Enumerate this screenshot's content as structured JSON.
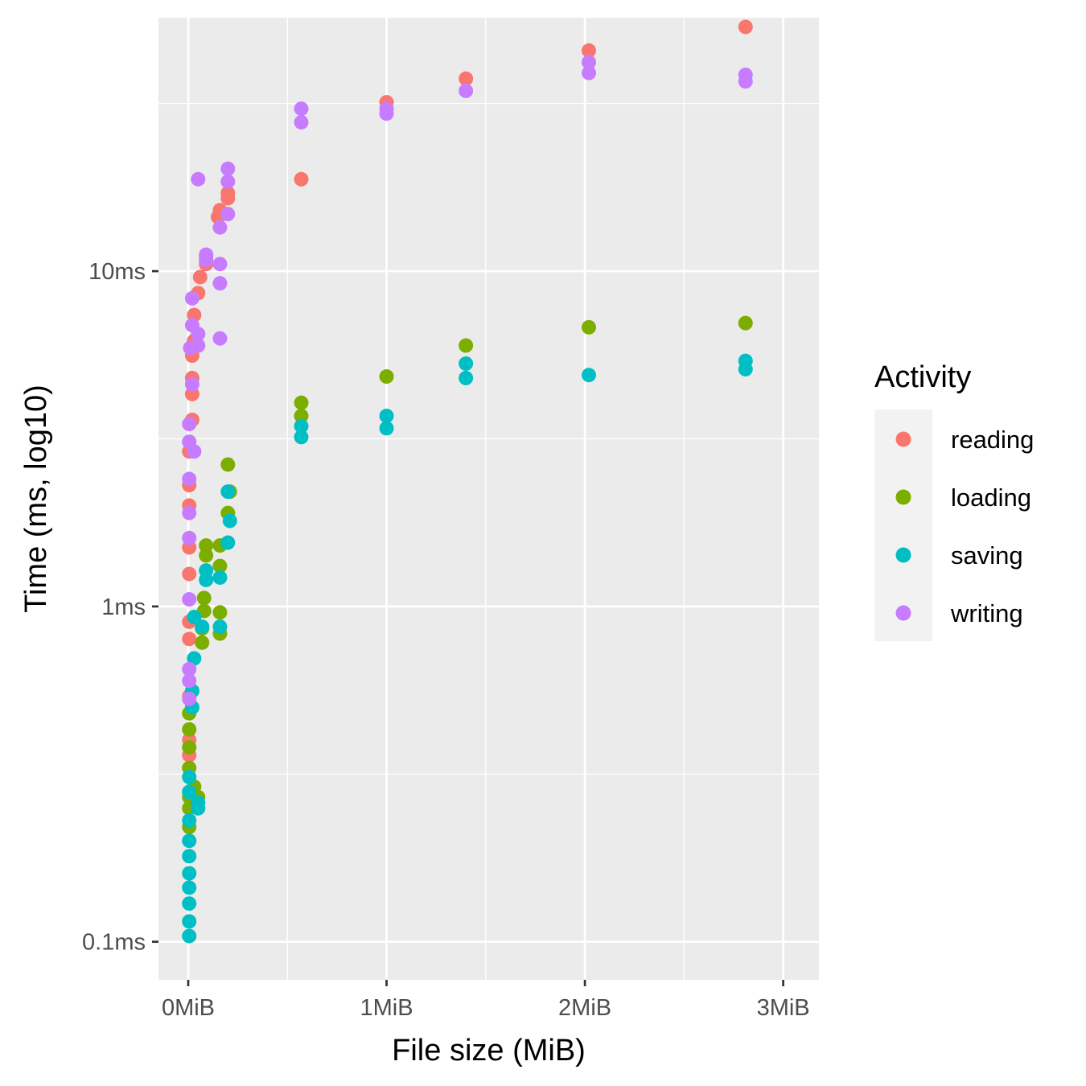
{
  "chart_data": {
    "type": "scatter",
    "title": "",
    "xlabel": "File size (MiB)",
    "ylabel": "Time (ms, log10)",
    "x_scale": "linear",
    "y_scale": "log10",
    "xlim": [
      -0.15,
      3.18
    ],
    "ylim": [
      0.077,
      57
    ],
    "x_ticks": [
      {
        "value": 0,
        "label": "0MiB"
      },
      {
        "value": 1,
        "label": "1MiB"
      },
      {
        "value": 2,
        "label": "2MiB"
      },
      {
        "value": 3,
        "label": "3MiB"
      }
    ],
    "y_ticks": [
      {
        "value": 0.1,
        "label": "0.1ms"
      },
      {
        "value": 1,
        "label": "1ms"
      },
      {
        "value": 10,
        "label": "10ms"
      }
    ],
    "grid": true,
    "legend": {
      "title": "Activity",
      "position": "right"
    },
    "series": [
      {
        "name": "reading",
        "color": "#F8766D",
        "points": [
          [
            0.005,
            0.54
          ],
          [
            0.005,
            0.8
          ],
          [
            0.005,
            0.9
          ],
          [
            0.005,
            1.25
          ],
          [
            0.005,
            1.5
          ],
          [
            0.005,
            2.0
          ],
          [
            0.005,
            2.3
          ],
          [
            0.005,
            2.9
          ],
          [
            0.005,
            0.4
          ],
          [
            0.005,
            0.36
          ],
          [
            0.02,
            3.6
          ],
          [
            0.02,
            4.3
          ],
          [
            0.02,
            4.8
          ],
          [
            0.02,
            5.6
          ],
          [
            0.03,
            6.2
          ],
          [
            0.03,
            7.4
          ],
          [
            0.05,
            8.6
          ],
          [
            0.06,
            9.6
          ],
          [
            0.09,
            10.5
          ],
          [
            0.09,
            11.1
          ],
          [
            0.15,
            14.5
          ],
          [
            0.16,
            15.2
          ],
          [
            0.2,
            16.5
          ],
          [
            0.2,
            17.1
          ],
          [
            0.57,
            18.8
          ],
          [
            1.0,
            31.9
          ],
          [
            1.4,
            37.5
          ],
          [
            2.02,
            45.5
          ],
          [
            2.81,
            53.5
          ]
        ]
      },
      {
        "name": "loading",
        "color": "#7CAE00",
        "points": [
          [
            0.005,
            0.22
          ],
          [
            0.005,
            0.25
          ],
          [
            0.005,
            0.27
          ],
          [
            0.005,
            0.33
          ],
          [
            0.005,
            0.38
          ],
          [
            0.005,
            0.43
          ],
          [
            0.005,
            0.48
          ],
          [
            0.03,
            0.26
          ],
          [
            0.05,
            0.27
          ],
          [
            0.03,
            0.29
          ],
          [
            0.07,
            0.78
          ],
          [
            0.07,
            0.86
          ],
          [
            0.08,
            0.97
          ],
          [
            0.08,
            1.06
          ],
          [
            0.09,
            1.42
          ],
          [
            0.09,
            1.52
          ],
          [
            0.16,
            0.83
          ],
          [
            0.16,
            0.96
          ],
          [
            0.16,
            1.32
          ],
          [
            0.16,
            1.52
          ],
          [
            0.2,
            1.9
          ],
          [
            0.21,
            2.2
          ],
          [
            0.2,
            2.65
          ],
          [
            0.57,
            3.7
          ],
          [
            0.57,
            4.05
          ],
          [
            1.0,
            4.85
          ],
          [
            1.4,
            6.0
          ],
          [
            2.02,
            6.8
          ],
          [
            2.81,
            7.0
          ]
        ]
      },
      {
        "name": "saving",
        "color": "#00BFC4",
        "points": [
          [
            0.005,
            0.104
          ],
          [
            0.005,
            0.115
          ],
          [
            0.005,
            0.13
          ],
          [
            0.005,
            0.145
          ],
          [
            0.005,
            0.16
          ],
          [
            0.005,
            0.18
          ],
          [
            0.005,
            0.2
          ],
          [
            0.005,
            0.23
          ],
          [
            0.005,
            0.28
          ],
          [
            0.005,
            0.31
          ],
          [
            0.02,
            0.5
          ],
          [
            0.02,
            0.56
          ],
          [
            0.03,
            0.7
          ],
          [
            0.03,
            0.93
          ],
          [
            0.05,
            0.26
          ],
          [
            0.05,
            0.25
          ],
          [
            0.07,
            0.87
          ],
          [
            0.09,
            1.2
          ],
          [
            0.09,
            1.28
          ],
          [
            0.16,
            0.87
          ],
          [
            0.16,
            1.22
          ],
          [
            0.2,
            1.55
          ],
          [
            0.21,
            1.8
          ],
          [
            0.2,
            2.2
          ],
          [
            0.57,
            3.2
          ],
          [
            0.57,
            3.45
          ],
          [
            1.0,
            3.4
          ],
          [
            1.0,
            3.7
          ],
          [
            1.4,
            4.8
          ],
          [
            1.4,
            5.3
          ],
          [
            2.02,
            4.9
          ],
          [
            2.81,
            5.1
          ],
          [
            2.81,
            5.4
          ]
        ]
      },
      {
        "name": "writing",
        "color": "#C77CFF",
        "points": [
          [
            0.005,
            0.53
          ],
          [
            0.005,
            0.6
          ],
          [
            0.005,
            0.65
          ],
          [
            0.005,
            1.05
          ],
          [
            0.005,
            1.6
          ],
          [
            0.005,
            1.9
          ],
          [
            0.005,
            2.4
          ],
          [
            0.005,
            3.1
          ],
          [
            0.005,
            3.5
          ],
          [
            0.01,
            5.9
          ],
          [
            0.02,
            4.6
          ],
          [
            0.02,
            6.9
          ],
          [
            0.02,
            8.3
          ],
          [
            0.03,
            2.9
          ],
          [
            0.05,
            6.0
          ],
          [
            0.05,
            6.5
          ],
          [
            0.05,
            18.8
          ],
          [
            0.09,
            10.8
          ],
          [
            0.09,
            11.2
          ],
          [
            0.16,
            6.3
          ],
          [
            0.16,
            9.2
          ],
          [
            0.16,
            10.5
          ],
          [
            0.16,
            13.5
          ],
          [
            0.2,
            14.8
          ],
          [
            0.2,
            18.5
          ],
          [
            0.2,
            20.2
          ],
          [
            0.57,
            27.8
          ],
          [
            0.57,
            30.5
          ],
          [
            1.0,
            29.5
          ],
          [
            1.0,
            30.5
          ],
          [
            1.4,
            34.5
          ],
          [
            2.02,
            39.0
          ],
          [
            2.02,
            42.0
          ],
          [
            2.81,
            36.8
          ],
          [
            2.81,
            38.5
          ]
        ]
      }
    ]
  }
}
